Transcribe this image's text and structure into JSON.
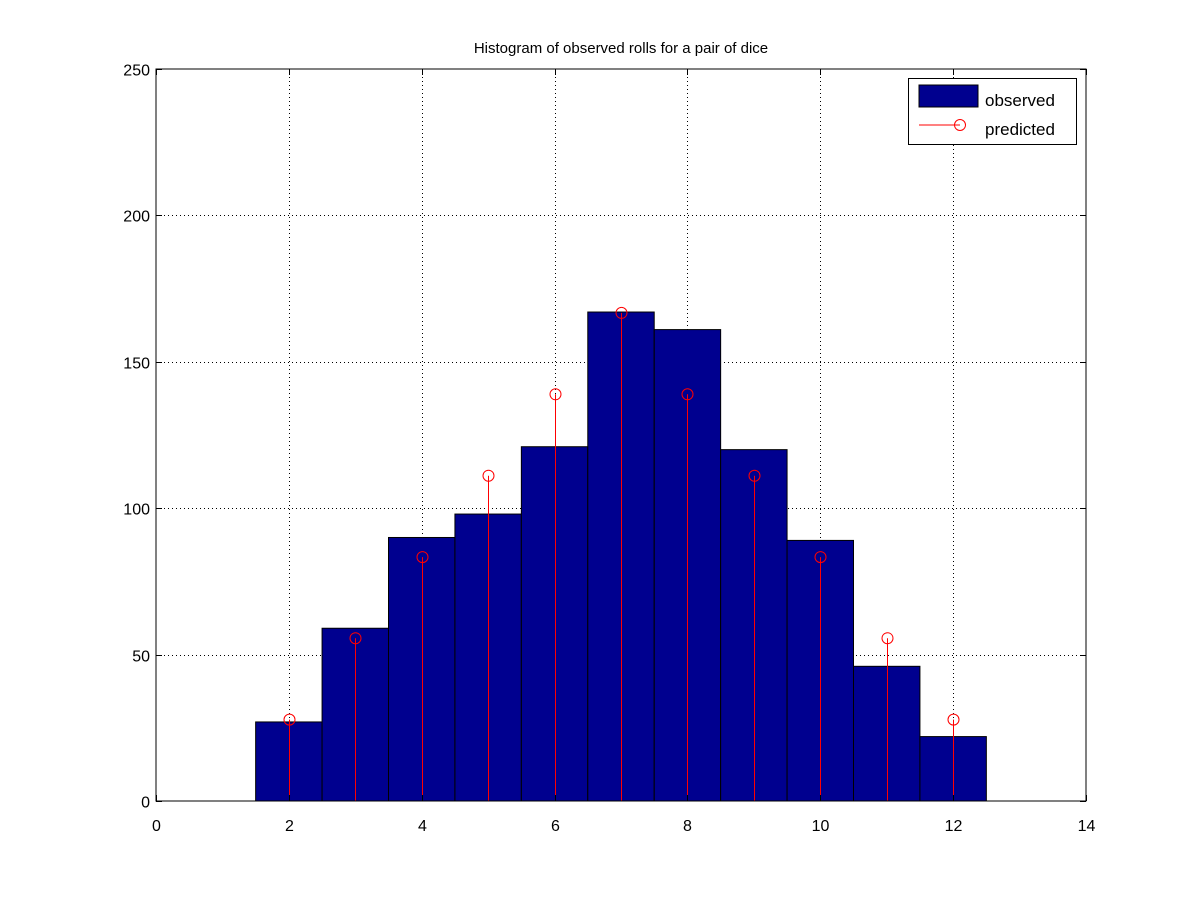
{
  "chart_data": {
    "type": "bar",
    "title": "Histogram of observed rolls for a pair of dice",
    "xlabel": "",
    "ylabel": "",
    "xlim": [
      0,
      14
    ],
    "ylim": [
      0,
      250
    ],
    "xticks": [
      0,
      2,
      4,
      6,
      8,
      10,
      12,
      14
    ],
    "yticks": [
      0,
      50,
      100,
      150,
      200,
      250
    ],
    "grid": true,
    "legend_position": "top-right",
    "categories": [
      2,
      3,
      4,
      5,
      6,
      7,
      8,
      9,
      10,
      11,
      12
    ],
    "series": [
      {
        "name": "observed",
        "type": "bar",
        "color": "#00008f",
        "values": [
          27,
          59,
          90,
          98,
          121,
          167,
          161,
          120,
          89,
          46,
          22
        ]
      },
      {
        "name": "predicted",
        "type": "stem",
        "color": "#ff0000",
        "marker": "circle",
        "values": [
          27.8,
          55.6,
          83.3,
          111.1,
          138.9,
          166.7,
          138.9,
          111.1,
          83.3,
          55.6,
          27.8
        ]
      }
    ]
  }
}
